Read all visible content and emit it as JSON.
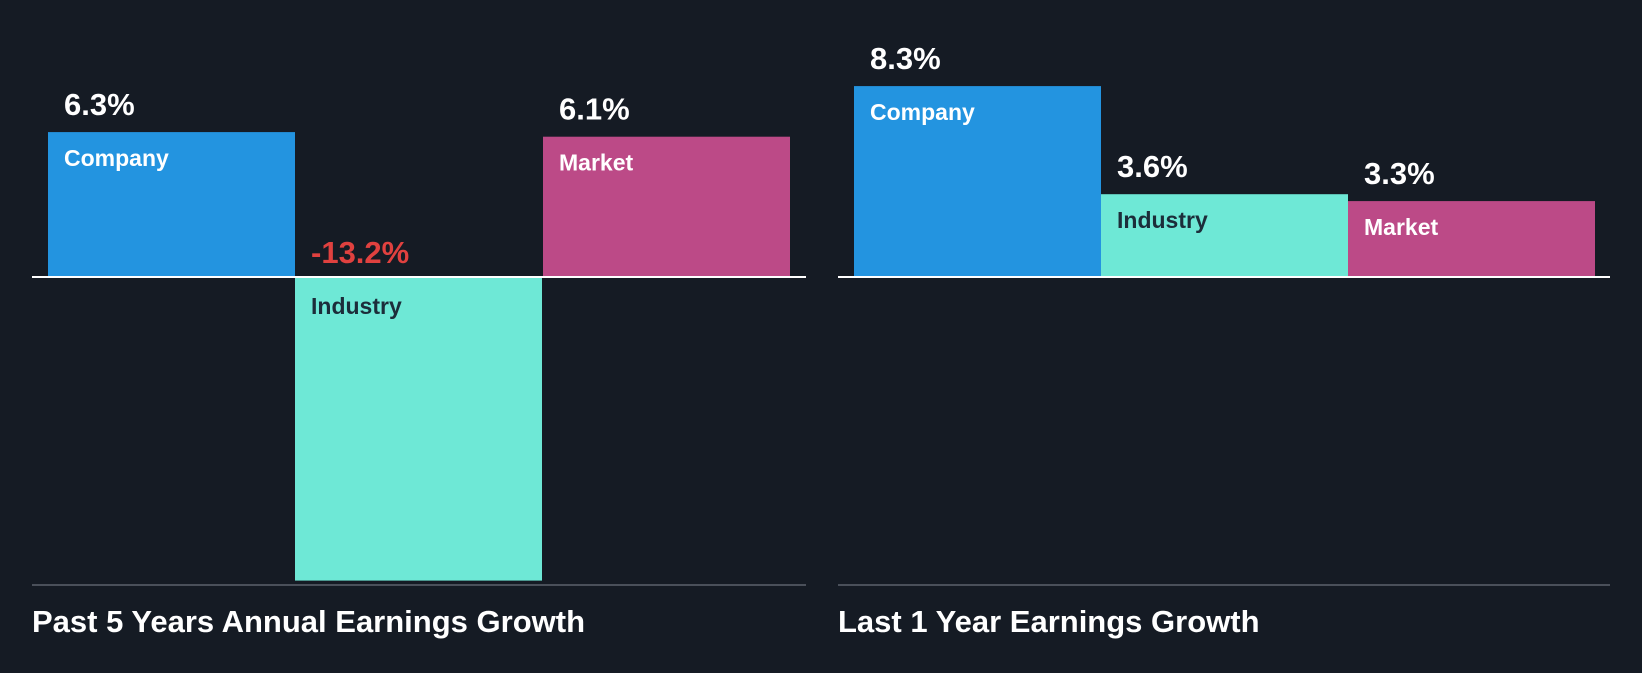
{
  "chart_data": [
    {
      "type": "bar",
      "title": "Past 5 Years Annual Earnings Growth",
      "categories": [
        "Company",
        "Industry",
        "Market"
      ],
      "values": [
        6.3,
        -13.2,
        6.1
      ],
      "value_labels": [
        "6.3%",
        "-13.2%",
        "6.1%"
      ],
      "unit": "%",
      "ylim": [
        -13.2,
        8.3
      ],
      "grid": false,
      "legend": "none"
    },
    {
      "type": "bar",
      "title": "Last 1 Year Earnings Growth",
      "categories": [
        "Company",
        "Industry",
        "Market"
      ],
      "values": [
        8.3,
        3.6,
        3.3
      ],
      "value_labels": [
        "8.3%",
        "3.6%",
        "3.3%"
      ],
      "unit": "%",
      "ylim": [
        -13.2,
        8.3
      ],
      "grid": false,
      "legend": "none"
    }
  ],
  "colors": {
    "background": "#151b24",
    "company": "#2394e0",
    "industry": "#6ee8d6",
    "market": "#bc4a87",
    "negative_label": "#e0413f",
    "label_light": "#ffffff",
    "label_dark": "#1c2d3a",
    "zero_line": "#ffffff",
    "base_line": "#4a505a"
  }
}
